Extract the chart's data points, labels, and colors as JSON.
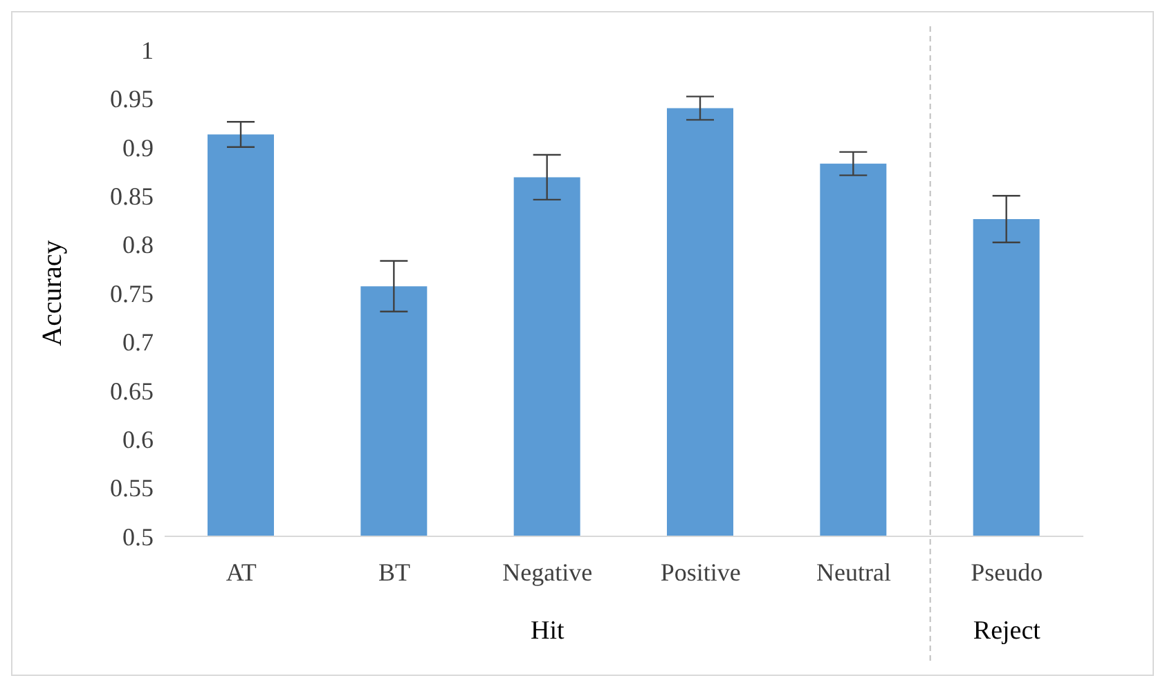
{
  "chart_data": {
    "type": "bar",
    "ylabel": "Accuracy",
    "categories": [
      "AT",
      "BT",
      "Negative",
      "Positive",
      "Neutral",
      "Pseudo"
    ],
    "values": [
      0.913,
      0.757,
      0.869,
      0.94,
      0.883,
      0.826
    ],
    "errors": [
      0.013,
      0.026,
      0.023,
      0.012,
      0.012,
      0.024
    ],
    "color": "#5b9bd5",
    "ylim": [
      0.5,
      1
    ],
    "yticks": [
      0.5,
      0.55,
      0.6,
      0.65,
      0.7,
      0.75,
      0.8,
      0.85,
      0.9,
      0.95,
      1
    ],
    "annotations": [
      "Hit",
      "Reject"
    ]
  }
}
